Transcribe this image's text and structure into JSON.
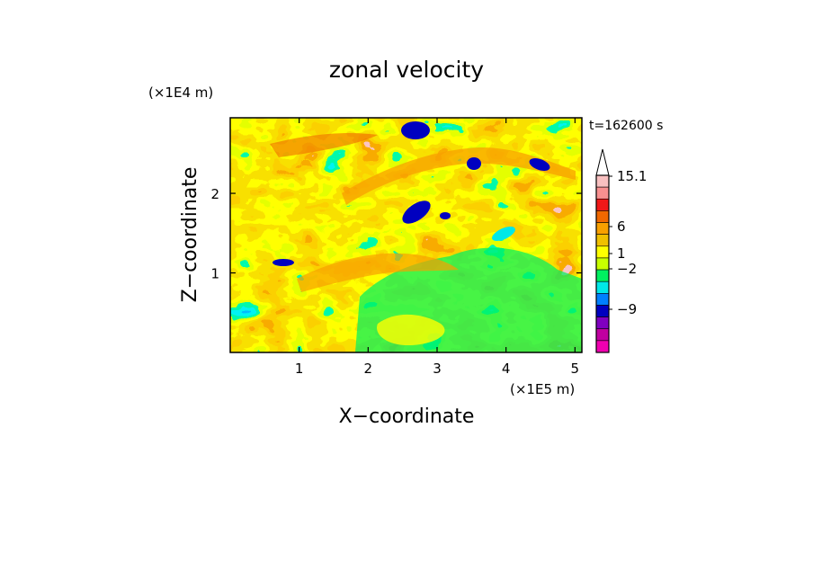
{
  "chart_data": {
    "type": "heatmap",
    "title": "zonal velocity",
    "time_label": "t=162600 s",
    "xlabel": "X−coordinate",
    "ylabel": "Z−coordinate",
    "x_multiplier_label": "(×1E5 m)",
    "y_multiplier_label": "(×1E4 m)",
    "xlim": [
      0,
      5.1
    ],
    "ylim": [
      0,
      2.95
    ],
    "x_ticks": [
      1,
      2,
      3,
      4,
      5
    ],
    "x_tick_labels": [
      "1",
      "2",
      "3",
      "4",
      "5"
    ],
    "y_ticks": [
      1,
      2
    ],
    "y_tick_labels": [
      "1",
      "2"
    ],
    "colorbar": {
      "tick_labels": [
        "15.1",
        "6",
        "1",
        "−2",
        "−9"
      ],
      "colors_top_to_bottom": [
        "#f8c0c0",
        "#f89090",
        "#f01818",
        "#f06800",
        "#f8a000",
        "#f0c000",
        "#ffff00",
        "#c8ff00",
        "#00f060",
        "#00e8e8",
        "#0080ff",
        "#0000c0",
        "#8000c0",
        "#c000a0",
        "#f000b0"
      ]
    },
    "field_description": "Colour-filled contours of zonal velocity in the X–Z plane; warm orange bands slant upward through mid levels, green weak flow dominates the lower right, dark blue negative cores appear near z≈2.7 and z≈1.8."
  }
}
